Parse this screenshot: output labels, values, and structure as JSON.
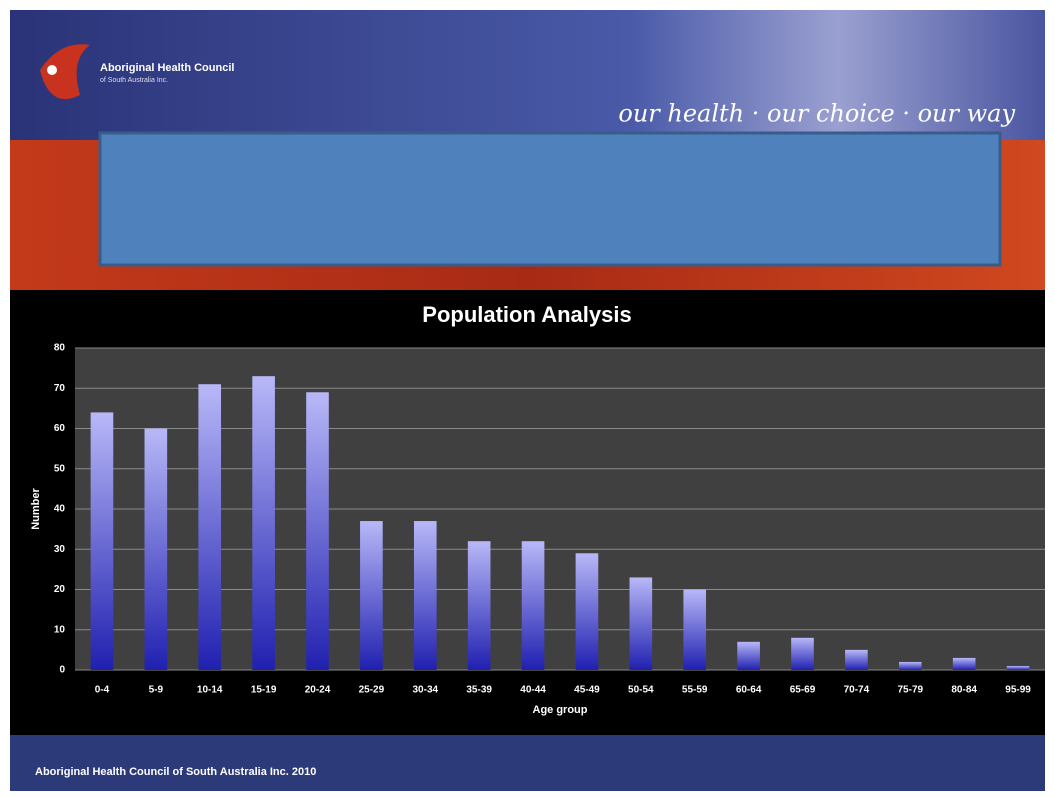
{
  "header": {
    "org_name": "Aboriginal Health Council",
    "org_sub": "of South Australia Inc.",
    "tagline": "our health · our choice · our way"
  },
  "chart_data": {
    "type": "bar",
    "title": "Population Analysis",
    "x_label": "Age group",
    "y_label": "Number",
    "categories": [
      "0-4",
      "5-9",
      "10-14",
      "15-19",
      "20-24",
      "25-29",
      "30-34",
      "35-39",
      "40-44",
      "45-49",
      "50-54",
      "55-59",
      "60-64",
      "65-69",
      "70-74",
      "75-79",
      "80-84",
      "95-99"
    ],
    "values": [
      64,
      60,
      71,
      73,
      69,
      37,
      37,
      32,
      32,
      29,
      23,
      20,
      7,
      8,
      5,
      2,
      3,
      1
    ],
    "color": "#b8b8f8",
    "ylim": [
      0,
      80
    ],
    "yticks": [
      0,
      10,
      20,
      30,
      40,
      50,
      60,
      70,
      80
    ],
    "grid": true
  },
  "footer": "Aboriginal Health Council of South Australia Inc. 2010"
}
